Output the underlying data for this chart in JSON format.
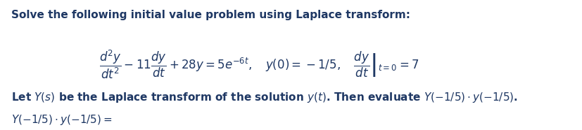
{
  "background_color": "#ffffff",
  "text_color": "#1f3864",
  "font_size_main": 11,
  "line1": "Solve the following initial value problem using Laplace transform:",
  "equation": "\\frac{d^2y}{dt^2} - 11\\frac{dy}{dt} + 28y = 5e^{-6t}, \\quad y(0) = -1/5, \\quad \\left.\\frac{dy}{dt}\\right|_{t=0} = 7",
  "line3": "Let $Y(s)$ be the Laplace transform of the solution $y(t)$. Then evaluate $Y(-1/5) \\cdot y(-1/5)$.",
  "line4": "$Y(-1/5) \\cdot y(-1/5) =$"
}
